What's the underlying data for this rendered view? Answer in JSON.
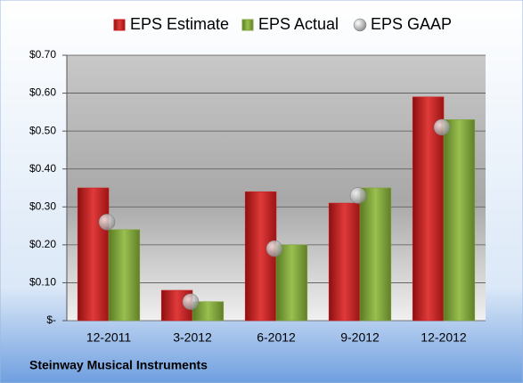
{
  "chart_data": {
    "type": "bar",
    "legend": "top",
    "grid": true,
    "footer": "Steinway Musical Instruments",
    "categories": [
      "12-2011",
      "3-2012",
      "6-2012",
      "9-2012",
      "12-2012"
    ],
    "series": [
      {
        "name": "EPS Estimate",
        "color": "#cc1f1f",
        "values": [
          0.35,
          0.08,
          0.34,
          0.31,
          0.59
        ]
      },
      {
        "name": "EPS Actual",
        "color": "#7fa33a",
        "values": [
          0.24,
          0.05,
          0.2,
          0.35,
          0.53
        ]
      },
      {
        "name": "EPS GAAP",
        "type": "scatter",
        "color": "#a8a8a8",
        "values": [
          0.26,
          0.05,
          0.19,
          0.33,
          0.51
        ]
      }
    ],
    "ylim": [
      0,
      0.7
    ],
    "yticks": [
      {
        "value": 0,
        "label": "$-"
      },
      {
        "value": 0.1,
        "label": "$0.10"
      },
      {
        "value": 0.2,
        "label": "$0.20"
      },
      {
        "value": 0.3,
        "label": "$0.30"
      },
      {
        "value": 0.4,
        "label": "$0.40"
      },
      {
        "value": 0.5,
        "label": "$0.50"
      },
      {
        "value": 0.6,
        "label": "$0.60"
      },
      {
        "value": 0.7,
        "label": "$0.70"
      }
    ]
  }
}
